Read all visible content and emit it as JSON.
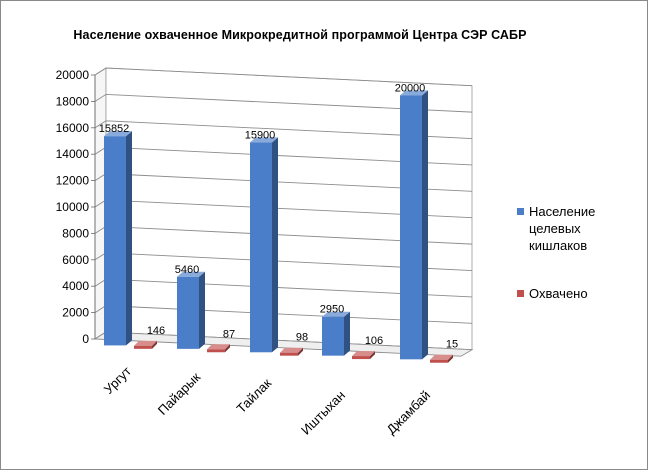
{
  "chart_data": {
    "type": "bar",
    "title": "Население охваченное  Микрокредитной программой  Центра СЭР САБР",
    "categories": [
      "Ургут",
      "Пайарык",
      "Тайлак",
      "Иштыхан",
      "Джамбай"
    ],
    "series": [
      {
        "name": "Население целевых кишлаков",
        "values": [
          15852,
          5460,
          15900,
          2950,
          20000
        ],
        "color": "#4a7ec8"
      },
      {
        "name": "Охвачено",
        "values": [
          146,
          87,
          98,
          106,
          15
        ],
        "color": "#c0504d"
      }
    ],
    "y_ticks": [
      "0",
      "2000",
      "4000",
      "6000",
      "8000",
      "10000",
      "12000",
      "14000",
      "16000",
      "18000",
      "20000"
    ],
    "data_labels": [
      [
        "15852",
        "5460",
        "15900",
        "2950",
        "20000"
      ],
      [
        "146",
        "87",
        "98",
        "106",
        "15"
      ]
    ],
    "ylim": [
      0,
      20000
    ],
    "grid": true,
    "legend_position": "right",
    "style": "3d-clustered-column"
  }
}
